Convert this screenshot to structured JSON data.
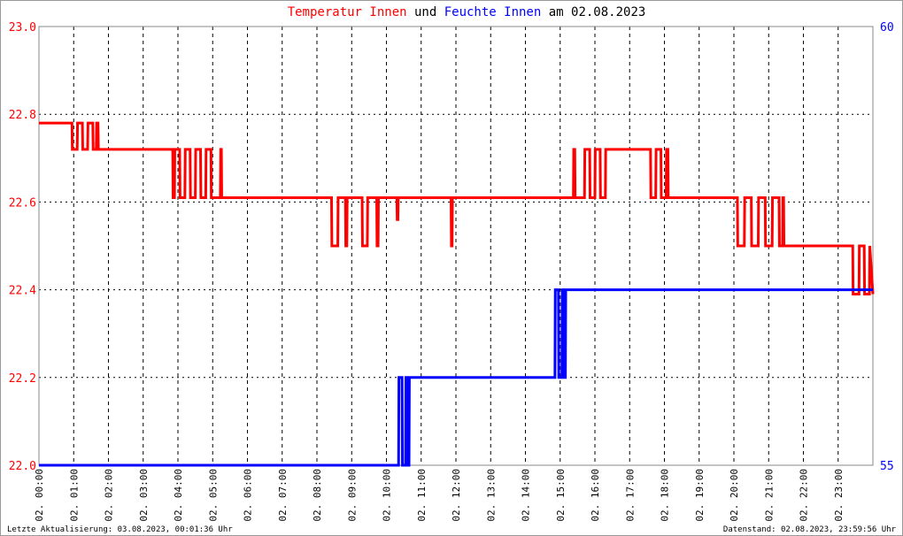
{
  "chart_data": {
    "type": "line",
    "title_parts": {
      "joiner": "und",
      "date": "am 02.08.2023"
    },
    "footer_left": "Letzte Aktualisierung: 03.08.2023, 00:01:36 Uhr",
    "footer_right": "Datenstand: 02.08.2023, 23:59:56 Uhr",
    "xlim": [
      0,
      24
    ],
    "xticks": [
      {
        "value": 0,
        "label": "02. 00:00"
      },
      {
        "value": 1,
        "label": "02. 01:00"
      },
      {
        "value": 2,
        "label": "02. 02:00"
      },
      {
        "value": 3,
        "label": "02. 03:00"
      },
      {
        "value": 4,
        "label": "02. 04:00"
      },
      {
        "value": 5,
        "label": "02. 05:00"
      },
      {
        "value": 6,
        "label": "02. 06:00"
      },
      {
        "value": 7,
        "label": "02. 07:00"
      },
      {
        "value": 8,
        "label": "02. 08:00"
      },
      {
        "value": 9,
        "label": "02. 09:00"
      },
      {
        "value": 10,
        "label": "02. 10:00"
      },
      {
        "value": 11,
        "label": "02. 11:00"
      },
      {
        "value": 12,
        "label": "02. 12:00"
      },
      {
        "value": 13,
        "label": "02. 13:00"
      },
      {
        "value": 14,
        "label": "02. 14:00"
      },
      {
        "value": 15,
        "label": "02. 15:00"
      },
      {
        "value": 16,
        "label": "02. 16:00"
      },
      {
        "value": 17,
        "label": "02. 17:00"
      },
      {
        "value": 18,
        "label": "02. 18:00"
      },
      {
        "value": 19,
        "label": "02. 19:00"
      },
      {
        "value": 20,
        "label": "02. 20:00"
      },
      {
        "value": 21,
        "label": "02. 21:00"
      },
      {
        "value": 22,
        "label": "02. 22:00"
      },
      {
        "value": 23,
        "label": "02. 23:00"
      }
    ],
    "ylim": [
      22,
      23
    ],
    "yticks": [
      {
        "value": 22,
        "label": "22.0"
      },
      22.2,
      22.4,
      22.6,
      22.8,
      {
        "value": 23,
        "label": "23.0"
      }
    ],
    "y2lim": [
      55,
      60
    ],
    "y2ticks": [
      55,
      60
    ],
    "grid": true,
    "series": [
      {
        "name": "Temperatur Innen",
        "color": "#ff0000",
        "x": [
          0,
          0.95,
          0.96,
          1.1,
          1.11,
          1.25,
          1.26,
          1.4,
          1.41,
          1.55,
          1.56,
          1.65,
          1.66,
          1.7,
          1.71,
          3.85,
          3.86,
          3.9,
          3.91,
          4.05,
          4.06,
          4.2,
          4.21,
          4.35,
          4.36,
          4.5,
          4.51,
          4.65,
          4.66,
          4.8,
          4.81,
          4.95,
          4.96,
          5.22,
          5.23,
          5.25,
          5.26,
          8.42,
          8.43,
          8.6,
          8.61,
          8.82,
          8.83,
          8.86,
          8.87,
          9.3,
          9.31,
          9.45,
          9.46,
          9.72,
          9.73,
          9.76,
          9.77,
          10.3,
          10.31,
          10.33,
          10.34,
          11.86,
          11.87,
          11.89,
          11.9,
          15.38,
          15.39,
          15.42,
          15.43,
          15.7,
          15.71,
          15.85,
          15.86,
          16.0,
          16.01,
          16.15,
          16.16,
          16.3,
          16.31,
          17.6,
          17.61,
          17.75,
          17.76,
          17.9,
          17.91,
          18.05,
          18.06,
          18.1,
          18.11,
          20.1,
          20.11,
          20.3,
          20.31,
          20.5,
          20.51,
          20.7,
          20.71,
          20.9,
          20.91,
          21.1,
          21.11,
          21.3,
          21.31,
          21.4,
          21.41,
          21.43,
          21.44,
          23.42,
          23.43,
          23.6,
          23.61,
          23.75,
          23.76,
          23.9,
          23.91,
          24
        ],
        "values": [
          22.78,
          22.78,
          22.72,
          22.72,
          22.78,
          22.78,
          22.72,
          22.72,
          22.78,
          22.78,
          22.72,
          22.72,
          22.78,
          22.78,
          22.72,
          22.72,
          22.61,
          22.61,
          22.72,
          22.72,
          22.61,
          22.61,
          22.72,
          22.72,
          22.61,
          22.61,
          22.72,
          22.72,
          22.61,
          22.61,
          22.72,
          22.72,
          22.61,
          22.61,
          22.72,
          22.72,
          22.61,
          22.61,
          22.5,
          22.5,
          22.61,
          22.61,
          22.5,
          22.5,
          22.61,
          22.61,
          22.5,
          22.5,
          22.61,
          22.61,
          22.5,
          22.5,
          22.61,
          22.61,
          22.56,
          22.56,
          22.61,
          22.61,
          22.5,
          22.5,
          22.61,
          22.61,
          22.72,
          22.72,
          22.61,
          22.61,
          22.72,
          22.72,
          22.61,
          22.61,
          22.72,
          22.72,
          22.61,
          22.61,
          22.72,
          22.72,
          22.61,
          22.61,
          22.72,
          22.72,
          22.61,
          22.61,
          22.72,
          22.72,
          22.61,
          22.61,
          22.5,
          22.5,
          22.61,
          22.61,
          22.5,
          22.5,
          22.61,
          22.61,
          22.5,
          22.5,
          22.61,
          22.61,
          22.5,
          22.5,
          22.61,
          22.61,
          22.5,
          22.5,
          22.39,
          22.39,
          22.5,
          22.5,
          22.39,
          22.39,
          22.5,
          22.39
        ]
      },
      {
        "name": "Feuchte Innen",
        "color": "#0000ff",
        "axis": "y2",
        "x": [
          0,
          10.35,
          10.36,
          10.45,
          10.46,
          10.55,
          10.56,
          10.6,
          10.61,
          10.65,
          10.66,
          14.85,
          14.86,
          14.95,
          14.96,
          15.05,
          15.06,
          15.1,
          15.11,
          15.15,
          15.16,
          24
        ],
        "values": [
          55,
          55,
          56,
          56,
          55,
          55,
          56,
          56,
          55,
          55,
          56,
          56,
          57,
          57,
          56,
          56,
          57,
          57,
          56,
          56,
          57,
          57
        ]
      }
    ]
  }
}
